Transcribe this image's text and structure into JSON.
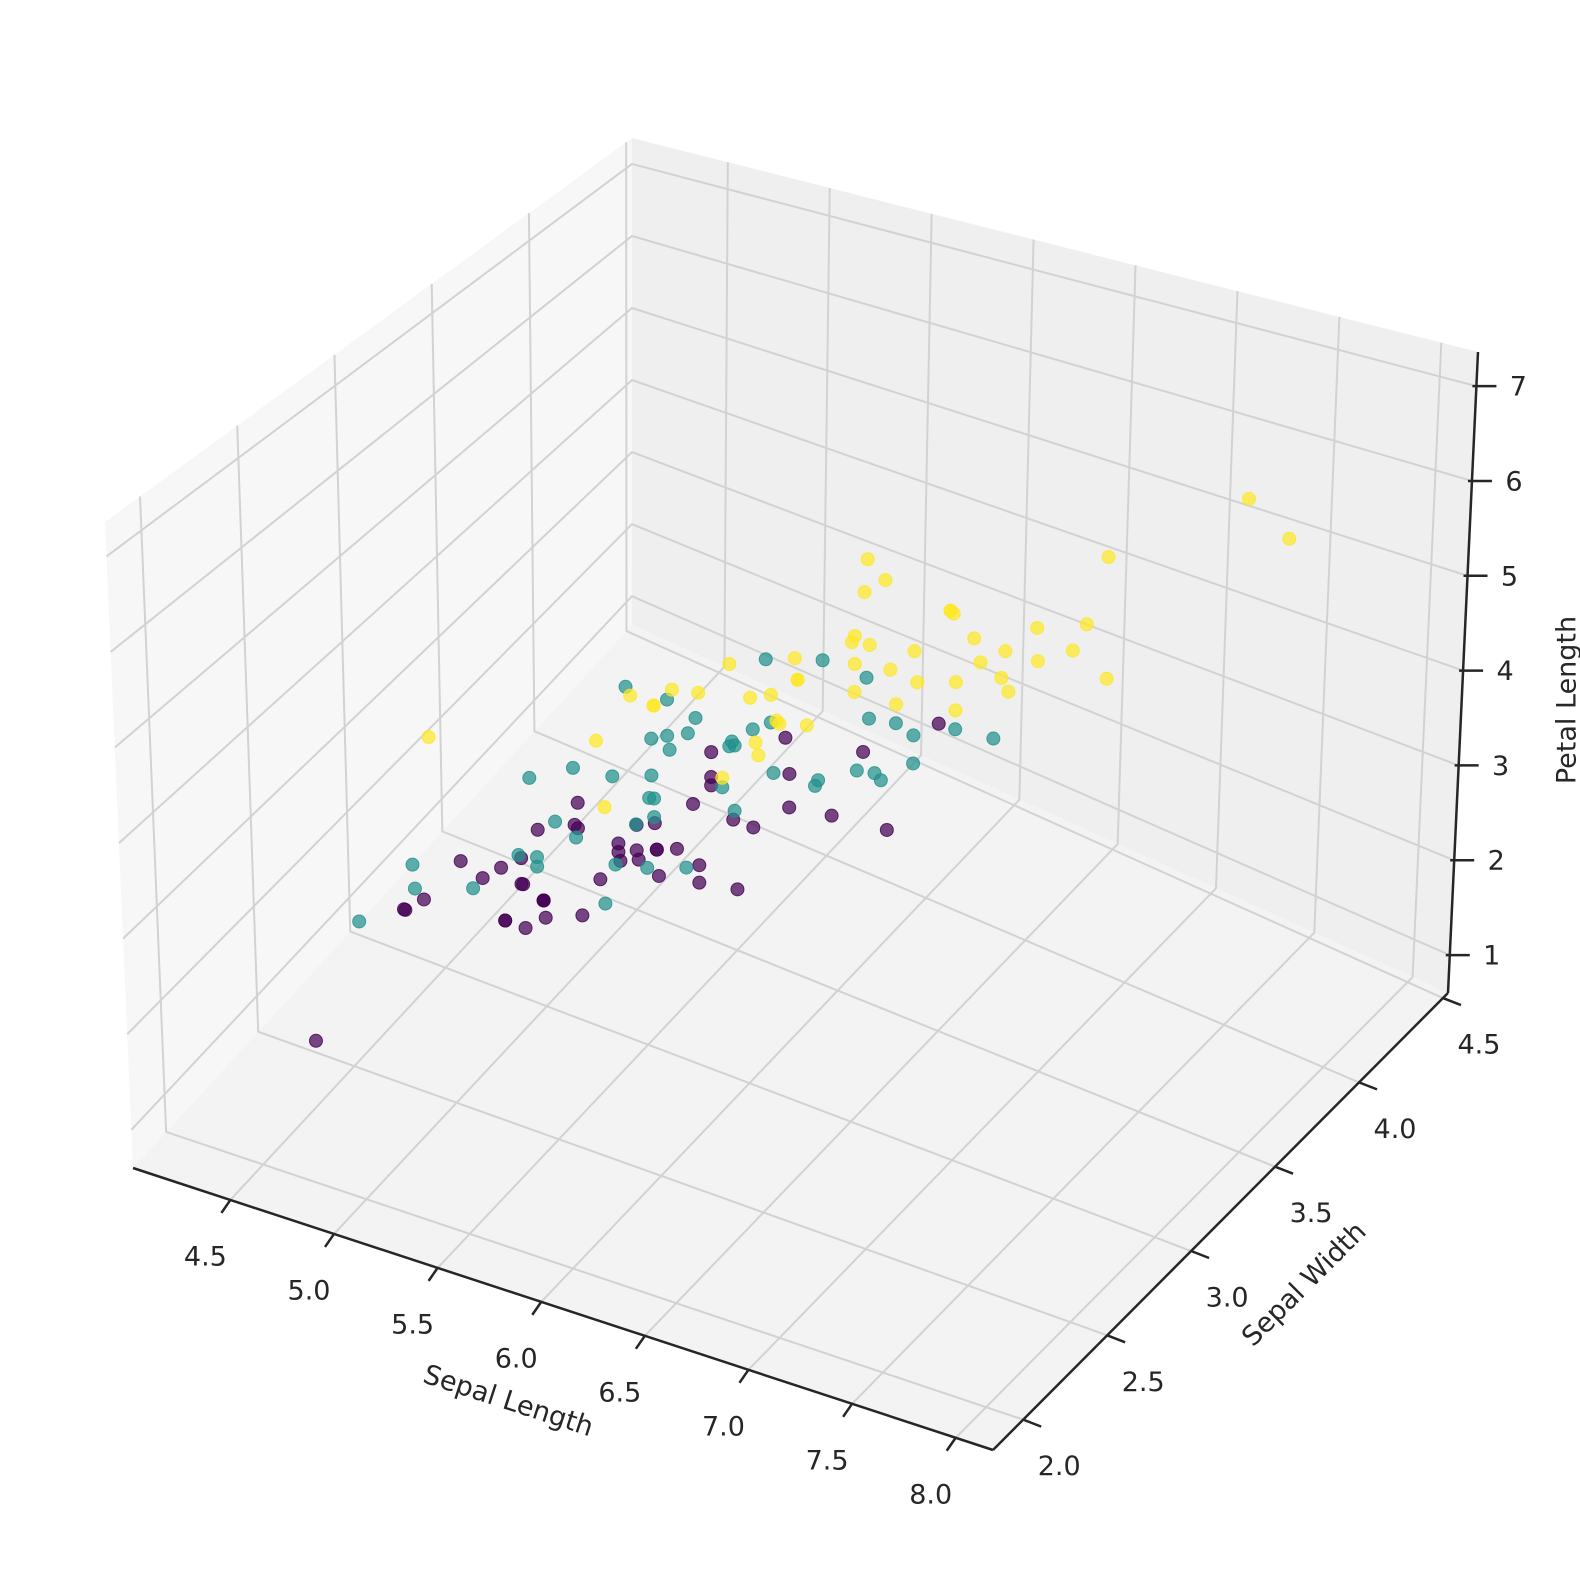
{
  "chart_data": {
    "type": "scatter3d",
    "x_label": "Sepal Length",
    "y_label": "Sepal Width",
    "z_label": "Petal Length",
    "xlim": [
      4.03,
      8.18
    ],
    "ylim": [
      1.82,
      4.53
    ],
    "zlim": [
      0.6,
      7.36
    ],
    "xticks": [
      4.5,
      {
        "value": 5,
        "label": "5.0"
      },
      5.5,
      {
        "value": 6,
        "label": "6.0"
      },
      6.5,
      {
        "value": 7,
        "label": "7.0"
      },
      7.5,
      {
        "value": 8,
        "label": "8.0"
      }
    ],
    "yticks": [
      {
        "value": 2,
        "label": "2.0"
      },
      2.5,
      {
        "value": 3,
        "label": "3.0"
      },
      3.5,
      {
        "value": 4,
        "label": "4.0"
      },
      4.5
    ],
    "zticks": [
      1,
      2,
      3,
      4,
      5,
      6,
      7
    ],
    "grid": true,
    "series": [
      {
        "color": "#440154",
        "x": [
          5.1,
          4.9,
          4.7,
          4.6,
          5.0,
          5.4,
          4.6,
          5.0,
          4.4,
          4.9,
          5.4,
          4.8,
          4.8,
          4.3,
          5.8,
          5.7,
          5.4,
          5.1,
          5.7,
          5.1,
          5.4,
          5.1,
          4.6,
          5.1,
          4.8,
          5.0,
          5.0,
          5.2,
          5.2,
          4.7,
          4.8,
          5.4,
          5.2,
          5.5,
          4.9,
          5.0,
          5.5,
          4.9,
          4.4,
          5.1,
          5.0,
          4.5,
          4.4,
          5.0,
          5.1,
          4.8,
          5.1,
          4.6,
          5.3,
          5.0
        ],
        "y": [
          3.5,
          3.0,
          3.2,
          3.1,
          3.6,
          3.9,
          3.4,
          3.4,
          2.9,
          3.1,
          3.7,
          3.4,
          3.0,
          3.0,
          4.0,
          4.4,
          3.9,
          3.5,
          3.8,
          3.8,
          3.4,
          3.7,
          3.6,
          3.3,
          3.4,
          3.0,
          3.4,
          3.5,
          3.4,
          3.2,
          3.1,
          3.4,
          4.1,
          4.2,
          3.1,
          3.2,
          3.5,
          3.1,
          3.0,
          3.4,
          3.5,
          2.3,
          3.2,
          3.5,
          3.8,
          3.0,
          3.8,
          3.2,
          3.7,
          3.3
        ],
        "z": [
          1.4,
          1.4,
          1.3,
          1.5,
          1.4,
          1.7,
          1.4,
          1.5,
          1.4,
          1.5,
          1.5,
          1.6,
          1.4,
          1.1,
          1.2,
          1.5,
          1.3,
          1.4,
          1.7,
          1.5,
          1.7,
          1.5,
          1.0,
          1.7,
          1.9,
          1.6,
          1.6,
          1.5,
          1.4,
          1.6,
          1.6,
          1.5,
          1.5,
          1.4,
          1.5,
          1.2,
          1.3,
          1.5,
          1.3,
          1.5,
          1.3,
          1.3,
          1.3,
          1.6,
          1.9,
          1.4,
          1.6,
          1.4,
          1.5,
          1.4
        ]
      },
      {
        "color": "#21918c",
        "x": [
          7.0,
          6.4,
          6.9,
          5.5,
          6.5,
          5.7,
          6.3,
          4.9,
          6.6,
          5.2,
          5.0,
          5.9,
          6.0,
          6.1,
          5.6,
          6.7,
          5.6,
          5.8,
          6.2,
          5.6,
          5.9,
          6.1,
          6.3,
          6.1,
          6.4,
          6.6,
          6.8,
          6.7,
          6.0,
          5.7,
          5.5,
          5.5,
          5.8,
          6.0,
          5.4,
          6.0,
          6.7,
          6.3,
          5.6,
          5.5,
          5.5,
          6.1,
          5.8,
          5.0,
          5.6,
          5.7,
          5.7,
          6.2,
          5.1,
          5.7
        ],
        "y": [
          3.2,
          3.2,
          3.1,
          2.3,
          2.8,
          2.8,
          3.3,
          2.4,
          2.9,
          2.7,
          2.0,
          3.0,
          2.2,
          2.9,
          2.9,
          3.1,
          3.0,
          2.7,
          2.2,
          2.5,
          3.2,
          2.8,
          2.5,
          2.8,
          2.9,
          3.0,
          2.8,
          3.0,
          2.9,
          2.6,
          2.4,
          2.4,
          2.7,
          2.7,
          3.0,
          3.4,
          3.1,
          2.3,
          3.0,
          2.5,
          2.6,
          3.0,
          2.6,
          2.3,
          2.7,
          3.0,
          2.9,
          2.9,
          2.5,
          2.8
        ],
        "z": [
          4.7,
          4.5,
          4.9,
          4.0,
          4.6,
          4.5,
          4.7,
          3.3,
          4.6,
          3.9,
          3.5,
          4.2,
          4.0,
          4.7,
          3.6,
          4.4,
          4.5,
          4.1,
          4.5,
          3.9,
          4.8,
          4.0,
          4.9,
          4.7,
          4.3,
          4.4,
          4.8,
          5.0,
          4.5,
          3.5,
          3.8,
          3.7,
          3.9,
          5.1,
          4.5,
          4.5,
          4.7,
          4.4,
          4.1,
          4.0,
          4.4,
          4.6,
          4.0,
          3.3,
          4.2,
          4.2,
          4.2,
          4.3,
          3.0,
          4.1
        ]
      },
      {
        "color": "#fde725",
        "x": [
          6.3,
          5.8,
          7.1,
          6.3,
          6.5,
          7.6,
          4.9,
          7.3,
          6.7,
          7.2,
          6.5,
          6.4,
          6.8,
          5.7,
          5.8,
          6.4,
          6.5,
          7.7,
          7.7,
          6.0,
          6.9,
          5.6,
          7.7,
          6.3,
          6.7,
          7.2,
          6.2,
          6.1,
          6.4,
          7.2,
          7.4,
          7.9,
          6.4,
          6.3,
          6.1,
          7.7,
          6.3,
          6.4,
          6.0,
          6.9,
          6.7,
          6.9,
          5.8,
          6.8,
          6.7,
          6.7,
          6.3,
          6.5,
          6.2,
          5.9
        ],
        "y": [
          3.3,
          2.7,
          3.0,
          2.9,
          3.0,
          3.0,
          2.5,
          2.9,
          2.5,
          3.6,
          3.2,
          2.7,
          3.0,
          2.5,
          2.8,
          3.2,
          3.0,
          3.8,
          2.6,
          2.2,
          3.2,
          2.8,
          2.8,
          2.7,
          3.3,
          3.2,
          2.8,
          3.0,
          2.8,
          3.0,
          2.8,
          3.8,
          2.8,
          2.8,
          2.6,
          3.0,
          3.4,
          3.1,
          3.0,
          3.1,
          3.1,
          3.1,
          2.7,
          3.2,
          3.3,
          3.0,
          2.5,
          3.0,
          3.4,
          3.0
        ],
        "z": [
          6.0,
          5.1,
          5.9,
          5.6,
          5.8,
          6.6,
          4.5,
          6.3,
          5.8,
          6.1,
          5.1,
          5.3,
          5.5,
          5.0,
          5.1,
          5.3,
          5.5,
          6.7,
          6.9,
          5.0,
          5.7,
          4.9,
          6.7,
          4.9,
          5.7,
          6.0,
          4.8,
          4.9,
          5.6,
          5.8,
          6.1,
          6.4,
          5.6,
          5.1,
          5.6,
          6.1,
          5.6,
          5.5,
          4.8,
          5.4,
          5.6,
          5.1,
          5.1,
          5.9,
          5.7,
          5.2,
          5.0,
          5.2,
          5.4,
          5.1
        ]
      }
    ]
  }
}
